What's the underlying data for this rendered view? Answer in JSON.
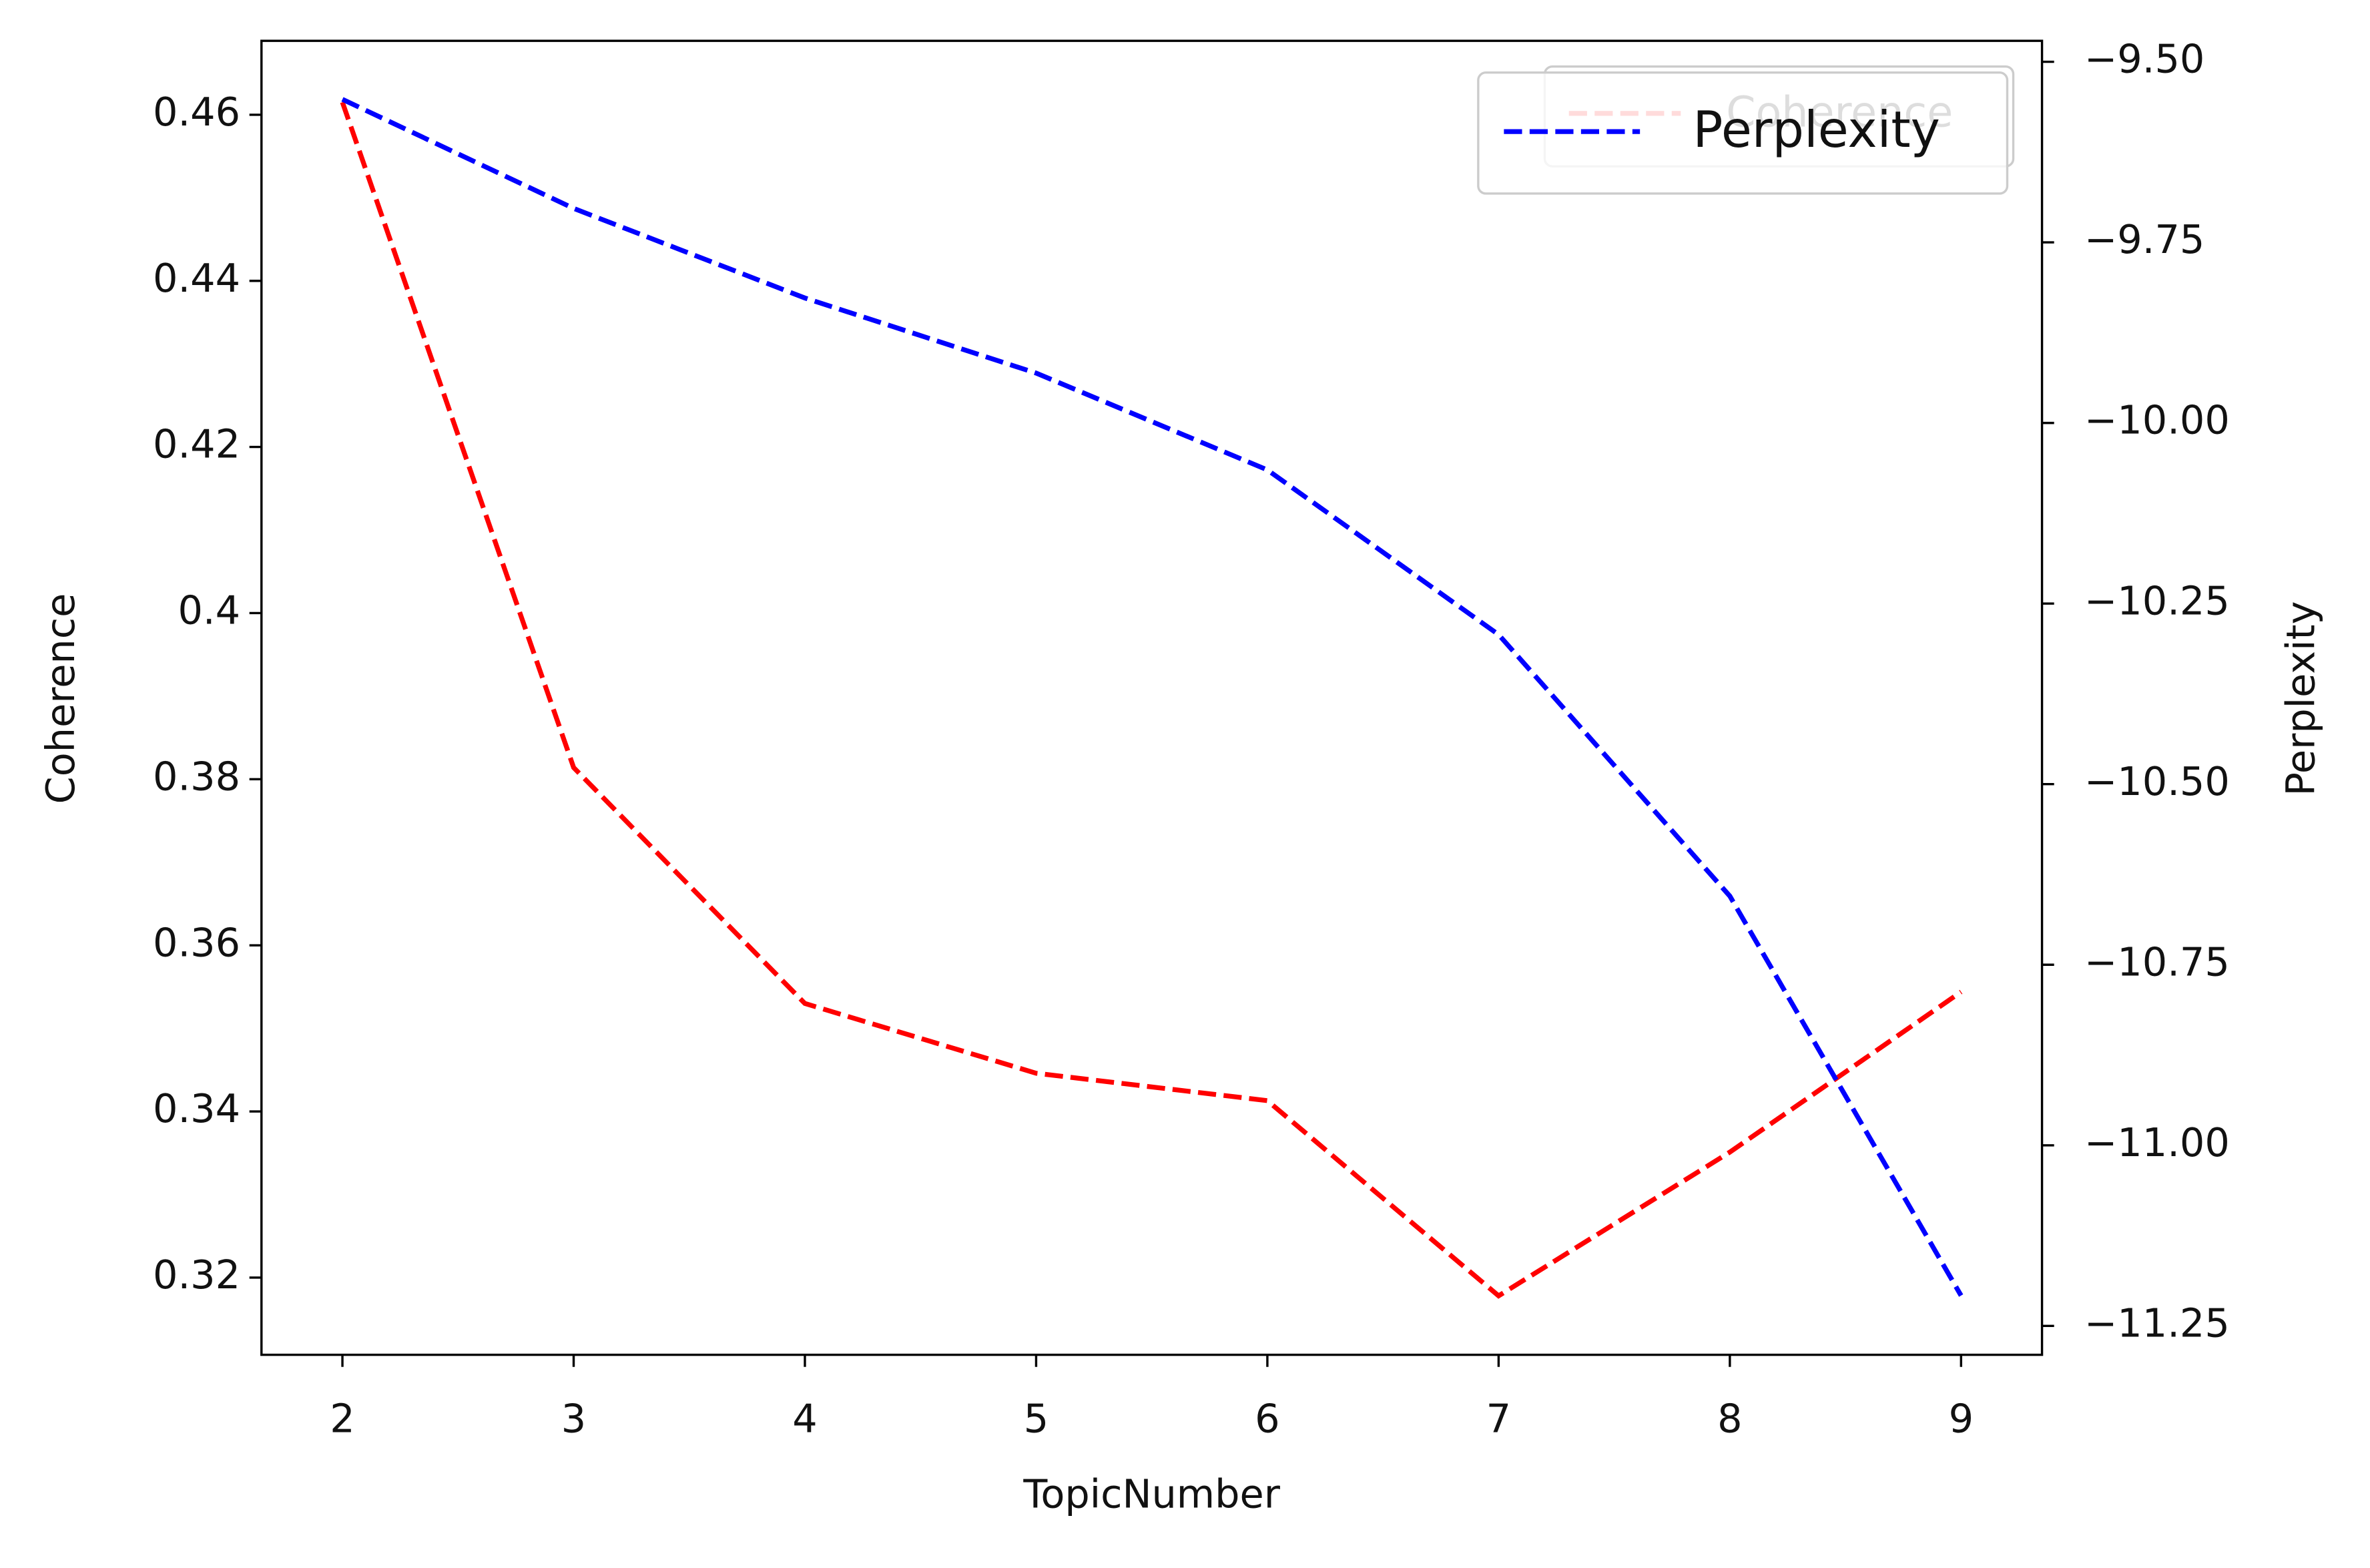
{
  "chart_data": {
    "type": "line",
    "x": [
      2,
      3,
      4,
      5,
      6,
      7,
      8,
      9
    ],
    "xlabel": "TopicNumber",
    "ylabel": "Coherence",
    "y2label": "Perplexity",
    "xlim": [
      1.65,
      9.35
    ],
    "xticks": [
      2,
      3,
      4,
      5,
      6,
      7,
      8,
      9
    ],
    "ylim": [
      0.3107,
      0.4689
    ],
    "yticks": [
      0.32,
      0.34,
      0.36,
      0.38,
      0.4,
      0.42,
      0.44,
      0.46
    ],
    "y2lim": [
      -11.29,
      -9.471
    ],
    "y2ticks": [
      {
        "value": -9.5,
        "label": "−9.50"
      },
      {
        "value": -9.75,
        "label": "−9.75"
      },
      {
        "value": -10.0,
        "label": "−10.00"
      },
      {
        "value": -10.25,
        "label": "−10.25"
      },
      {
        "value": -10.5,
        "label": "−10.50"
      },
      {
        "value": -10.75,
        "label": "−10.75"
      },
      {
        "value": -11.0,
        "label": "−11.00"
      },
      {
        "value": -11.25,
        "label": "−11.25"
      }
    ],
    "grid": false,
    "legend": "upper right",
    "series": [
      {
        "name": "Coherence",
        "color": "#ff0000",
        "values": [
          0.4615,
          0.3814,
          0.353,
          0.3446,
          0.3413,
          0.3178,
          0.3351,
          0.3544
        ]
      },
      {
        "name": "Perplexity",
        "color": "#0000ff",
        "axis": "y2",
        "values": [
          -9.552,
          -9.703,
          -9.827,
          -9.931,
          -10.065,
          -10.293,
          -10.655,
          -11.208
        ]
      }
    ]
  }
}
